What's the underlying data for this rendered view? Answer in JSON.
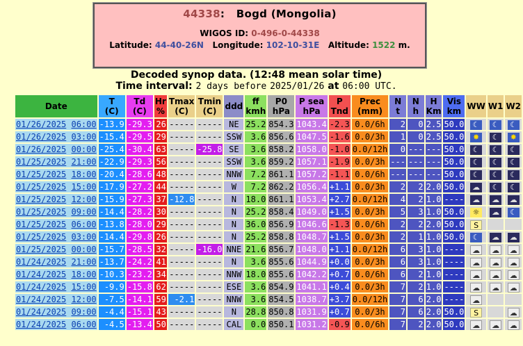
{
  "station": {
    "index": "44338",
    "separator": ":",
    "name": "Bogd (Mongolia)",
    "wigos_label": "WIGOS ID:",
    "wigos_id": "0-496-0-44338",
    "latitude_label": "Latitude:",
    "latitude": "44-40-26N",
    "longitude_label": "Longitude:",
    "longitude": "102-10-31E",
    "altitude_label": "Altitude:",
    "altitude": "1522",
    "altitude_unit": "m."
  },
  "heading": {
    "line1": "Decoded synop data. (12:48 mean solar time)",
    "line2_prefix": "Time interval:",
    "line2_interval": "2 days before",
    "line2_date": "2025/01/26",
    "line2_at": "at",
    "line2_time": "06:00 UTC."
  },
  "columns": [
    {
      "key": "date",
      "label": "Date",
      "cls": "hdr-date"
    },
    {
      "key": "T",
      "label": "T\n(C)",
      "cls": "hdr-T"
    },
    {
      "key": "Td",
      "label": "Td\n(C)",
      "cls": "hdr-Td"
    },
    {
      "key": "Hr",
      "label": "Hr\n%",
      "cls": "hdr-Hr"
    },
    {
      "key": "Tmax",
      "label": "Tmax\n(C)",
      "cls": ""
    },
    {
      "key": "Tmin",
      "label": "Tmin\n(C)",
      "cls": ""
    },
    {
      "key": "ddd",
      "label": "ddd",
      "cls": "hdr-ddd"
    },
    {
      "key": "ff",
      "label": "ff\nkmh",
      "cls": "hdr-ff"
    },
    {
      "key": "P0",
      "label": "P0\nhPa",
      "cls": "hdr-P0"
    },
    {
      "key": "Psea",
      "label": "P sea\nhPa",
      "cls": "hdr-Ps"
    },
    {
      "key": "Ptnd",
      "label": "P\nTnd",
      "cls": "hdr-Pt"
    },
    {
      "key": "Prec",
      "label": "Prec\n(mm)",
      "cls": "hdr-Prec"
    },
    {
      "key": "N",
      "label": "N\nt",
      "cls": "hdr-N"
    },
    {
      "key": "Nh",
      "label": "N\nh",
      "cls": "hdr-N"
    },
    {
      "key": "H",
      "label": "H\nKm",
      "cls": "hdr-N"
    },
    {
      "key": "Vis",
      "label": "Vis\nkm",
      "cls": "hdr-Vis"
    },
    {
      "key": "WW",
      "label": "WW",
      "cls": "hdr-W"
    },
    {
      "key": "W1",
      "label": "W1",
      "cls": "hdr-W"
    },
    {
      "key": "W2",
      "label": "W2",
      "cls": "hdr-W"
    }
  ],
  "rows": [
    {
      "date": "01/26/2025",
      "time": "06:00",
      "T": "-13.9",
      "Td": "-29.3",
      "Hr": "26",
      "Tmax": "-----",
      "Tmin": "-----",
      "ddd": "NE",
      "ff": "25.2",
      "P0": "854.3",
      "Psea": "1043.4",
      "Ptnd": "-2.3",
      "Prec": "0.0/6h",
      "N": "2",
      "Nh": "0",
      "H": "2.5",
      "Vis": "50.0",
      "WW": "partly-night",
      "W1": "partly-night",
      "W2": "partly-night"
    },
    {
      "date": "01/26/2025",
      "time": "03:00",
      "T": "-15.4",
      "Td": "-29.5",
      "Hr": "29",
      "Tmax": "-----",
      "Tmin": "-----",
      "ddd": "SSW",
      "ff": "3.6",
      "P0": "856.6",
      "Psea": "1047.5",
      "Ptnd": "-1.6",
      "Prec": "0.0/3h",
      "N": "1",
      "Nh": "0",
      "H": "2.5",
      "Vis": "50.0",
      "WW": "clear-day",
      "W1": "clear-night",
      "W2": "clear-day"
    },
    {
      "date": "01/26/2025",
      "time": "00:00",
      "T": "-25.4",
      "Td": "-30.4",
      "Hr": "63",
      "Tmax": "-----",
      "Tmin": "-25.8",
      "ddd": "SE",
      "ff": "3.6",
      "P0": "858.2",
      "Psea": "1058.0",
      "Ptnd": "-1.0",
      "Prec": "0.0/12h",
      "N": "0",
      "Nh": "---",
      "H": "---",
      "Vis": "50.0",
      "WW": "clear-night",
      "W1": "clear-night",
      "W2": "clear-night"
    },
    {
      "date": "01/25/2025",
      "time": "21:00",
      "T": "-22.9",
      "Td": "-29.3",
      "Hr": "56",
      "Tmax": "-----",
      "Tmin": "-----",
      "ddd": "SSW",
      "ff": "3.6",
      "P0": "859.2",
      "Psea": "1057.1",
      "Ptnd": "-1.9",
      "Prec": "0.0/3h",
      "N": "---",
      "Nh": "---",
      "H": "---",
      "Vis": "50.0",
      "WW": "clear-night",
      "W1": "clear-night",
      "W2": "clear-night"
    },
    {
      "date": "01/25/2025",
      "time": "18:00",
      "T": "-20.4",
      "Td": "-28.6",
      "Hr": "48",
      "Tmax": "-----",
      "Tmin": "-----",
      "ddd": "NNW",
      "ff": "7.2",
      "P0": "861.1",
      "Psea": "1057.2",
      "Ptnd": "-1.1",
      "Prec": "0.0/6h",
      "N": "---",
      "Nh": "---",
      "H": "---",
      "Vis": "50.0",
      "WW": "clear-night",
      "W1": "clear-night",
      "W2": "clear-night"
    },
    {
      "date": "01/25/2025",
      "time": "15:00",
      "T": "-17.9",
      "Td": "-27.2",
      "Hr": "44",
      "Tmax": "-----",
      "Tmin": "-----",
      "ddd": "W",
      "ff": "7.2",
      "P0": "862.2",
      "Psea": "1056.4",
      "Ptnd": "+1.1",
      "Prec": "0.0/3h",
      "N": "2",
      "Nh": "2",
      "H": "2.0",
      "Vis": "50.0",
      "WW": "cloud",
      "W1": "clear-night",
      "W2": "clear-night"
    },
    {
      "date": "01/25/2025",
      "time": "12:00",
      "T": "-15.9",
      "Td": "-27.3",
      "Hr": "37",
      "Tmax": "-12.8",
      "Tmin": "-----",
      "ddd": "N",
      "ff": "18.0",
      "P0": "861.1",
      "Psea": "1053.4",
      "Ptnd": "+2.7",
      "Prec": "0.0/12h",
      "N": "4",
      "Nh": "2",
      "H": "1.0",
      "Vis": "----",
      "WW": "cloud",
      "W1": "cloud",
      "W2": "cloud"
    },
    {
      "date": "01/25/2025",
      "time": "09:00",
      "T": "-14.4",
      "Td": "-28.2",
      "Hr": "30",
      "Tmax": "-----",
      "Tmin": "-----",
      "ddd": "N",
      "ff": "25.2",
      "P0": "858.4",
      "Psea": "1049.0",
      "Ptnd": "+1.5",
      "Prec": "0.0/3h",
      "N": "5",
      "Nh": "3",
      "H": "1.0",
      "Vis": "50.0",
      "WW": "sun-cloud",
      "W1": "cloud",
      "W2": "partly-night"
    },
    {
      "date": "01/25/2025",
      "time": "06:00",
      "T": "-13.8",
      "Td": "-28.0",
      "Hr": "29",
      "Tmax": "-----",
      "Tmin": "-----",
      "ddd": "N",
      "ff": "36.0",
      "P0": "856.9",
      "Psea": "1046.6",
      "Ptnd": "-1.3",
      "Prec": "0.0/6h",
      "N": "2",
      "Nh": "2",
      "H": "2.0",
      "Vis": "50.0",
      "WW": "sand",
      "W1": "",
      "W2": ""
    },
    {
      "date": "01/25/2025",
      "time": "03:00",
      "T": "-14.4",
      "Td": "-29.8",
      "Hr": "26",
      "Tmax": "-----",
      "Tmin": "-----",
      "ddd": "N",
      "ff": "25.2",
      "P0": "858.8",
      "Psea": "1048.7",
      "Ptnd": "+1.5",
      "Prec": "0.0/3h",
      "N": "2",
      "Nh": "1",
      "H": "1.0",
      "Vis": "50.0",
      "WW": "partly-night",
      "W1": "cloud",
      "W2": "cloud"
    },
    {
      "date": "01/25/2025",
      "time": "00:00",
      "T": "-15.7",
      "Td": "-28.5",
      "Hr": "32",
      "Tmax": "-----",
      "Tmin": "-16.0",
      "ddd": "NNE",
      "ff": "21.6",
      "P0": "856.7",
      "Psea": "1048.0",
      "Ptnd": "+1.1",
      "Prec": "0.0/12h",
      "N": "6",
      "Nh": "3",
      "H": "1.0",
      "Vis": "----",
      "WW": "overcast",
      "W1": "overcast",
      "W2": "overcast"
    },
    {
      "date": "01/24/2025",
      "time": "21:00",
      "T": "-13.7",
      "Td": "-24.2",
      "Hr": "41",
      "Tmax": "-----",
      "Tmin": "-----",
      "ddd": "N",
      "ff": "3.6",
      "P0": "855.6",
      "Psea": "1044.9",
      "Ptnd": "+0.0",
      "Prec": "0.0/3h",
      "N": "6",
      "Nh": "3",
      "H": "1.0",
      "Vis": "----",
      "WW": "overcast",
      "W1": "overcast",
      "W2": "overcast"
    },
    {
      "date": "01/24/2025",
      "time": "18:00",
      "T": "-10.3",
      "Td": "-23.2",
      "Hr": "34",
      "Tmax": "-----",
      "Tmin": "-----",
      "ddd": "NNW",
      "ff": "18.0",
      "P0": "855.6",
      "Psea": "1042.2",
      "Ptnd": "+0.7",
      "Prec": "0.0/6h",
      "N": "6",
      "Nh": "2",
      "H": "1.0",
      "Vis": "----",
      "WW": "overcast",
      "W1": "overcast",
      "W2": "overcast"
    },
    {
      "date": "01/24/2025",
      "time": "15:00",
      "T": "-9.9",
      "Td": "-15.8",
      "Hr": "62",
      "Tmax": "-----",
      "Tmin": "-----",
      "ddd": "ESE",
      "ff": "3.6",
      "P0": "854.9",
      "Psea": "1041.1",
      "Ptnd": "+0.4",
      "Prec": "0.0/3h",
      "N": "7",
      "Nh": "2",
      "H": "1.0",
      "Vis": "----",
      "WW": "overcast",
      "W1": "overcast",
      "W2": "overcast"
    },
    {
      "date": "01/24/2025",
      "time": "12:00",
      "T": "-7.5",
      "Td": "-14.1",
      "Hr": "59",
      "Tmax": "-2.1",
      "Tmin": "-----",
      "ddd": "NNW",
      "ff": "3.6",
      "P0": "854.5",
      "Psea": "1038.7",
      "Ptnd": "+3.7",
      "Prec": "0.0/12h",
      "N": "7",
      "Nh": "6",
      "H": "2.0",
      "Vis": "----",
      "WW": "overcast",
      "W1": "",
      "W2": ""
    },
    {
      "date": "01/24/2025",
      "time": "09:00",
      "T": "-4.4",
      "Td": "-15.1",
      "Hr": "43",
      "Tmax": "-----",
      "Tmin": "-----",
      "ddd": "N",
      "ff": "28.8",
      "P0": "850.8",
      "Psea": "1031.9",
      "Ptnd": "+0.7",
      "Prec": "0.0/3h",
      "N": "7",
      "Nh": "6",
      "H": "2.0",
      "Vis": "50.0",
      "WW": "sand",
      "W1": "",
      "W2": "overcast"
    },
    {
      "date": "01/24/2025",
      "time": "06:00",
      "T": "-4.5",
      "Td": "-13.4",
      "Hr": "50",
      "Tmax": "-----",
      "Tmin": "-----",
      "ddd": "CAL",
      "ff": "0.0",
      "P0": "850.1",
      "Psea": "1031.2",
      "Ptnd": "-0.9",
      "Prec": "0.0/6h",
      "N": "7",
      "Nh": "2",
      "H": "2.0",
      "Vis": "50.0",
      "WW": "overcast",
      "W1": "overcast",
      "W2": "overcast"
    }
  ],
  "icon_glyphs": {
    "clear-night": "☾",
    "clear-day": "✸",
    "partly-night": "☾",
    "cloud": "☁",
    "overcast": "☁",
    "sand": "S",
    "sun-cloud": "☼"
  }
}
